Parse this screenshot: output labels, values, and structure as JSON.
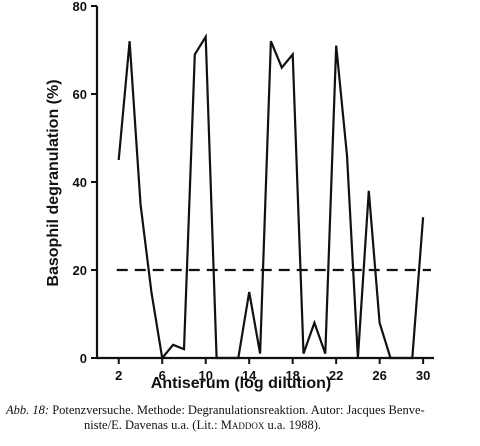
{
  "chart_data": {
    "type": "line",
    "title": "",
    "xlabel": "Antiserum (log dilution)",
    "ylabel": "Basophil degranulation (%)",
    "xlim": [
      0,
      31
    ],
    "ylim": [
      0,
      80
    ],
    "x_ticks": [
      2,
      6,
      10,
      14,
      18,
      22,
      26,
      30
    ],
    "x_tick_labels": [
      "2",
      "6",
      "10",
      "14",
      "18",
      "22",
      "26",
      "30"
    ],
    "y_ticks": [
      0,
      20,
      40,
      60,
      80
    ],
    "y_tick_labels": [
      "0",
      "20",
      "40",
      "60",
      "80"
    ],
    "grid": false,
    "series": [
      {
        "x": [
          2,
          3,
          4,
          5,
          6,
          7,
          8,
          9,
          10,
          11,
          12,
          13,
          14,
          15,
          16,
          17,
          18,
          19,
          20,
          21,
          22,
          23,
          24,
          25,
          26,
          27,
          28,
          29,
          30
        ],
        "y": [
          45,
          72,
          35,
          15,
          0,
          3,
          2,
          69,
          73,
          0,
          0,
          0,
          15,
          1,
          72,
          66,
          69,
          1,
          8,
          1,
          71,
          46,
          0,
          38,
          8,
          0,
          0,
          0,
          32
        ]
      }
    ],
    "reference_line": {
      "y": 20,
      "style": "dashed"
    }
  },
  "caption": {
    "label": "Abb. 18:",
    "line1": "Potenzversuche. Methode: Degranulationsreaktion. Autor: Jacques Benve-",
    "line2_pre": "niste/E. Davenas u.a. (Lit.: ",
    "line2_sc": "Maddox",
    "line2_post": " u.a. 1988)."
  }
}
